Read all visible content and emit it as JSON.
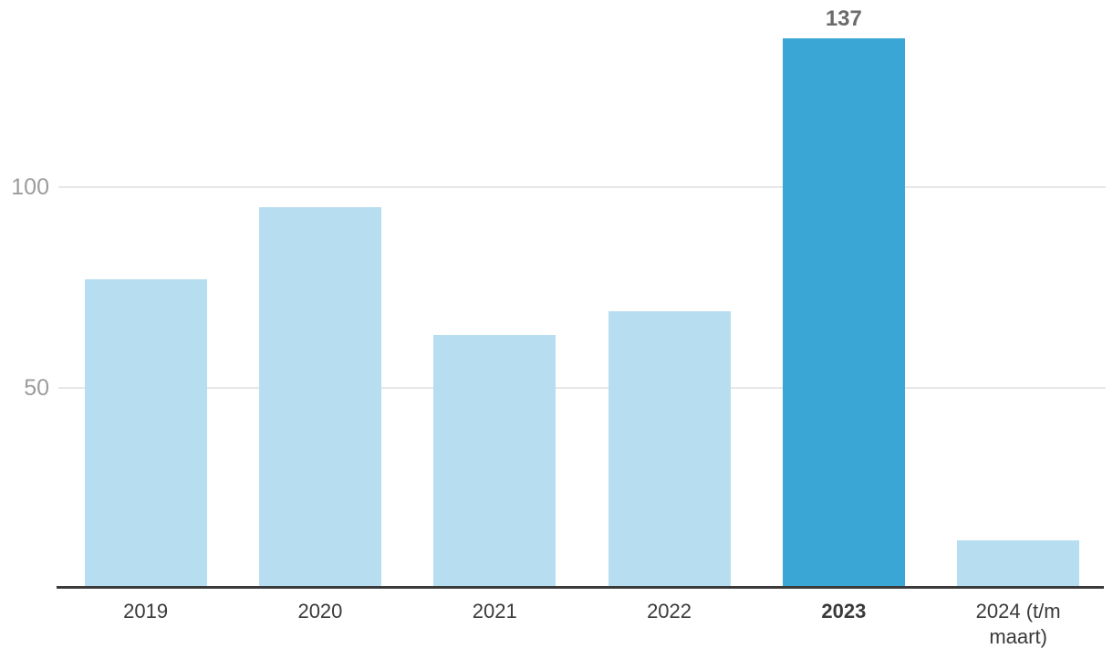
{
  "chart_data": {
    "type": "bar",
    "title": "",
    "xlabel": "",
    "ylabel": "",
    "categories": [
      "2019",
      "2020",
      "2021",
      "2022",
      "2023",
      "2024 (t/m maart)"
    ],
    "values": [
      77,
      95,
      63,
      69,
      137,
      12
    ],
    "emphasized_index": 4,
    "emphasized_category": "2023",
    "bar_value_labels": [
      {
        "index": 4,
        "text": "137"
      }
    ],
    "yticks": [
      50,
      100
    ],
    "ytick_labels": [
      "50",
      "100"
    ],
    "ylim": [
      0,
      146
    ],
    "grid": "horizontal",
    "legend": "none",
    "colors": {
      "bar": "#B7DEF0",
      "bar_emphasis": "#39A6D6",
      "gridline": "#E7E7E7",
      "axis_line": "#3A3A3A",
      "ytick_label": "#9C9C9C",
      "xtick_label": "#3A3A3A",
      "value_label": "#6B6B6B",
      "background": "#FFFFFF"
    }
  }
}
